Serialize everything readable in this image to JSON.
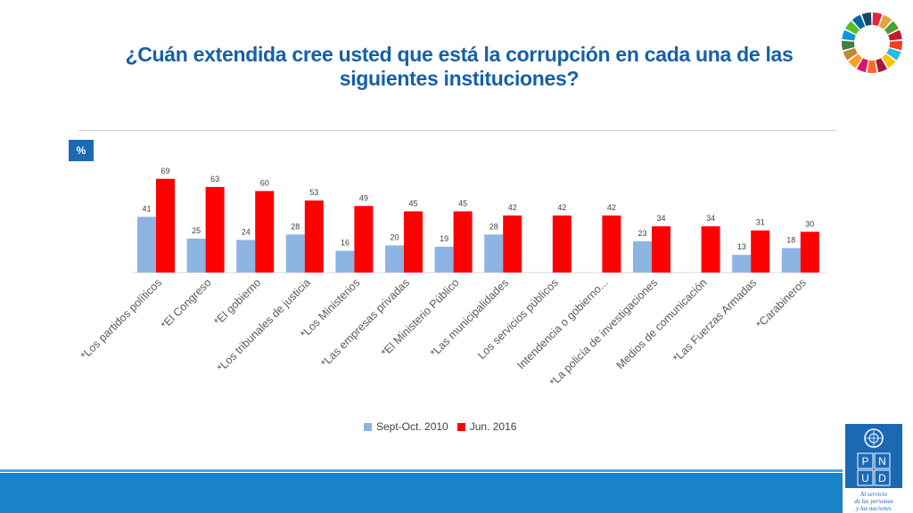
{
  "title_lines": [
    "¿Cuán extendida cree usted que está la corrupción en cada una de las",
    "siguientes instituciones?"
  ],
  "unit_badge": "%",
  "colors": {
    "series1": "#8db4e2",
    "series2": "#ff0000",
    "title": "#1660a8",
    "accent": "#1b68b5"
  },
  "chart_data": {
    "type": "bar",
    "title": "¿Cuán extendida cree usted que está la corrupción en cada una de las siguientes instituciones?",
    "ylabel": "%",
    "ylim": [
      0,
      80
    ],
    "categories": [
      "*Los partidos políticos",
      "*El Congreso",
      "*El gobierno",
      "*Los tribunales de justicia",
      "*Los Ministerios",
      "*Las empresas privadas",
      "*El Ministerio Público",
      "*Las municipalidades",
      "Los servicios públicos",
      "Intendencia o gobierno...",
      "*La policía de investigaciones",
      "Medios de comunicación",
      "*Las Fuerzas Armadas",
      "*Carabineros"
    ],
    "series": [
      {
        "name": "Sept-Oct. 2010",
        "values": [
          41,
          25,
          24,
          28,
          16,
          20,
          19,
          28,
          null,
          null,
          23,
          null,
          13,
          18
        ]
      },
      {
        "name": "Jun. 2016",
        "values": [
          69,
          63,
          60,
          53,
          49,
          45,
          45,
          42,
          42,
          42,
          34,
          34,
          31,
          30
        ]
      }
    ],
    "legend": "bottom"
  },
  "logo": {
    "undp_letters": [
      "P",
      "N",
      "U",
      "D"
    ],
    "tagline": [
      "Al servicio",
      "de las personas",
      "y las naciones"
    ]
  }
}
